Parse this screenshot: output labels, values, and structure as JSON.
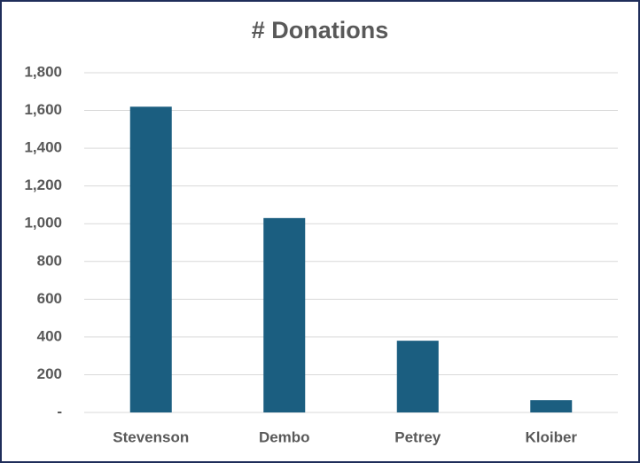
{
  "chart_data": {
    "type": "bar",
    "title": "# Donations",
    "categories": [
      "Stevenson",
      "Dembo",
      "Petrey",
      "Kloiber"
    ],
    "values": [
      1620,
      1030,
      380,
      65
    ],
    "color": "#1b5e80",
    "ylim": [
      0,
      1800
    ],
    "yticks": [
      {
        "value": 0,
        "label": "-"
      },
      200,
      400,
      600,
      800,
      {
        "value": 1000,
        "label": "1,000"
      },
      {
        "value": 1200,
        "label": "1,200"
      },
      {
        "value": 1400,
        "label": "1,400"
      },
      {
        "value": 1600,
        "label": "1,600"
      },
      {
        "value": 1800,
        "label": "1,800"
      }
    ],
    "grid": true
  }
}
